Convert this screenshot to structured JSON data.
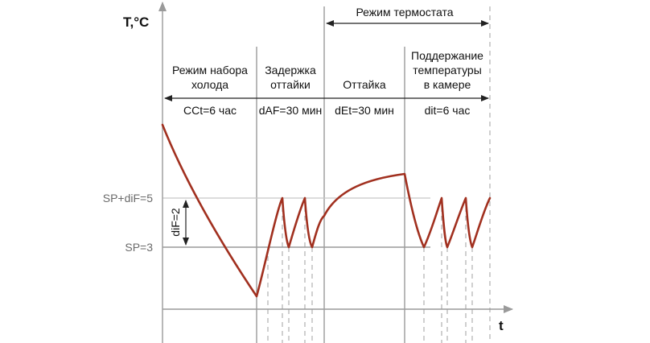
{
  "axes": {
    "y_label": "T,°C",
    "x_label": "t"
  },
  "levels": {
    "sp_dif": "SP+diF=5",
    "sp": "SP=3",
    "dif": "diF=2"
  },
  "thermostat_mode": "Режим термостата",
  "phases": [
    {
      "line1": "Режим набора",
      "line2": "холода",
      "line3": "",
      "param": "CCt=6 час"
    },
    {
      "line1": "Задержка",
      "line2": "оттайки",
      "line3": "",
      "param": "dAF=30 мин"
    },
    {
      "line1": "Оттайка",
      "line2": "",
      "line3": "",
      "param": "dEt=30 мин"
    },
    {
      "line1": "Поддержание",
      "line2": "температуры",
      "line3": "в камере",
      "param": "dit=6 час"
    }
  ],
  "colors": {
    "curve": "#a1301f",
    "axis": "#999999",
    "text": "#111111"
  }
}
